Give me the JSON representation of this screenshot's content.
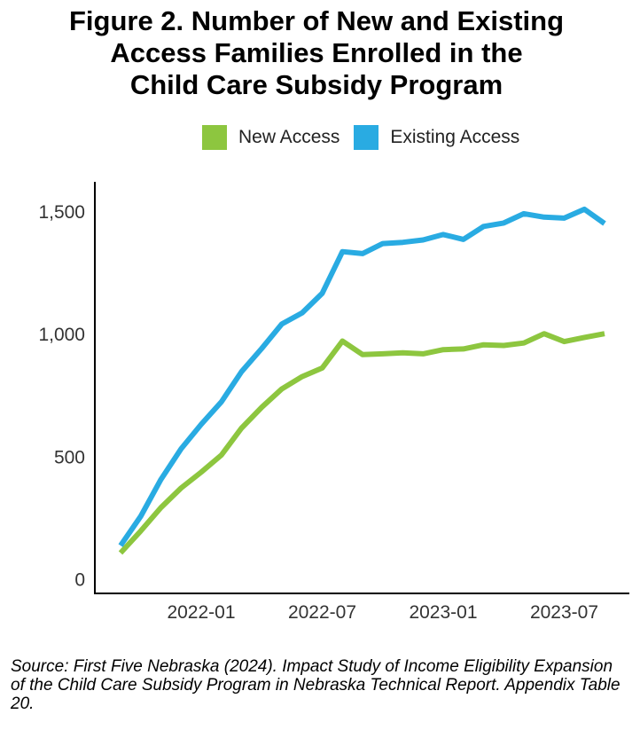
{
  "title_lines": [
    "Figure 2. Number of New and Existing",
    "Access Families Enrolled in the",
    "Child Care Subsidy Program"
  ],
  "source_text": "Source: First Five Nebraska (2024). Impact Study of Income Eligibility Expansion of the Child Care Subsidy Program in Nebraska Technical Report. Appendix Table 20.",
  "chart_data": {
    "type": "line",
    "title": "Figure 2. Number of New and Existing Access Families Enrolled in the Child Care Subsidy Program",
    "xlabel": "",
    "ylabel": "",
    "x": [
      "2021-09",
      "2021-10",
      "2021-11",
      "2021-12",
      "2022-01",
      "2022-02",
      "2022-03",
      "2022-04",
      "2022-05",
      "2022-06",
      "2022-07",
      "2022-08",
      "2022-09",
      "2022-10",
      "2022-11",
      "2022-12",
      "2023-01",
      "2023-02",
      "2023-03",
      "2023-04",
      "2023-05",
      "2023-06",
      "2023-07",
      "2023-08",
      "2023-09"
    ],
    "x_ticks": [
      "2022-01",
      "2022-07",
      "2023-01",
      "2023-07"
    ],
    "y_ticks": [
      0,
      500,
      1000,
      1500
    ],
    "y_tick_labels": [
      "0",
      "500",
      "1,000",
      "1,500"
    ],
    "ylim": [
      -60,
      1620
    ],
    "grid": false,
    "legend_position": "top",
    "series": [
      {
        "name": "New Access",
        "color": "#8DC63F",
        "values": [
          105,
          195,
          290,
          370,
          435,
          505,
          615,
          700,
          775,
          825,
          860,
          970,
          915,
          918,
          922,
          918,
          935,
          938,
          955,
          952,
          962,
          1000,
          968,
          985,
          1000
        ]
      },
      {
        "name": "Existing Access",
        "color": "#29ABE2",
        "values": [
          135,
          255,
          405,
          530,
          630,
          722,
          845,
          940,
          1040,
          1085,
          1165,
          1335,
          1327,
          1368,
          1373,
          1383,
          1405,
          1385,
          1438,
          1452,
          1490,
          1476,
          1472,
          1508,
          1450
        ]
      }
    ]
  }
}
